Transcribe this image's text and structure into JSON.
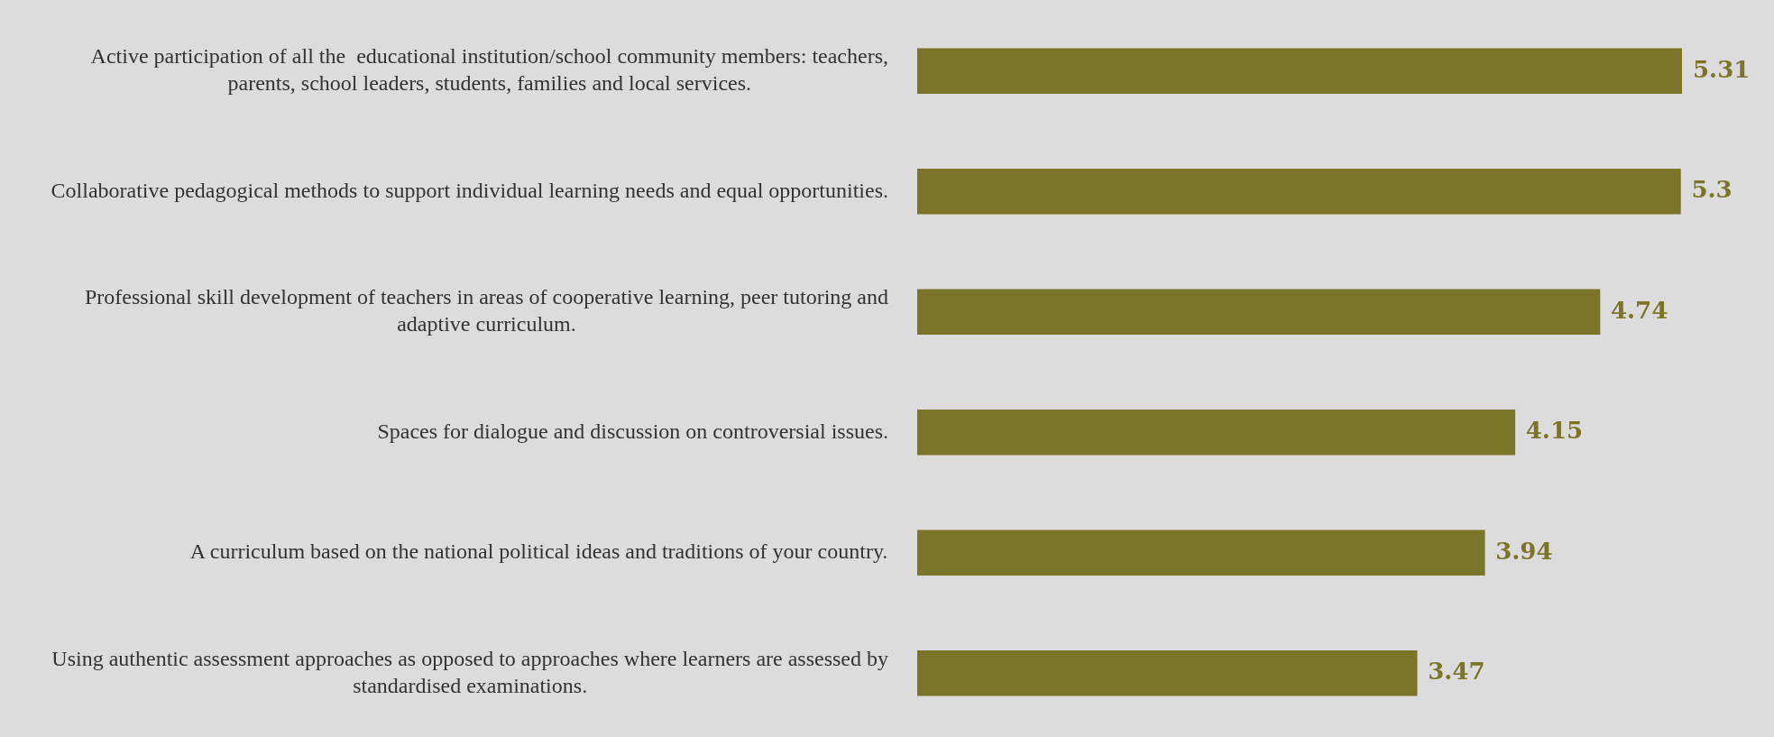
{
  "chart_data": {
    "type": "bar",
    "orientation": "horizontal",
    "categories": [
      "Active participation of all the  educational institution/school community members: teachers, parents, school leaders, students, families and local services.",
      "Collaborative pedagogical methods to support individual learning needs and equal opportunities.",
      "Professional skill development of teachers in areas of cooperative learning, peer tutoring and adaptive curriculum.",
      "Spaces for dialogue and discussion on controversial issues.",
      "A curriculum based on the national political ideas and traditions of your country.",
      "Using authentic assessment approaches as opposed to approaches where learners are assessed by standardised examinations."
    ],
    "values": [
      5.31,
      5.3,
      4.74,
      4.15,
      3.94,
      3.47
    ],
    "color": "#7a7529",
    "data_labels": true,
    "legend": false
  }
}
